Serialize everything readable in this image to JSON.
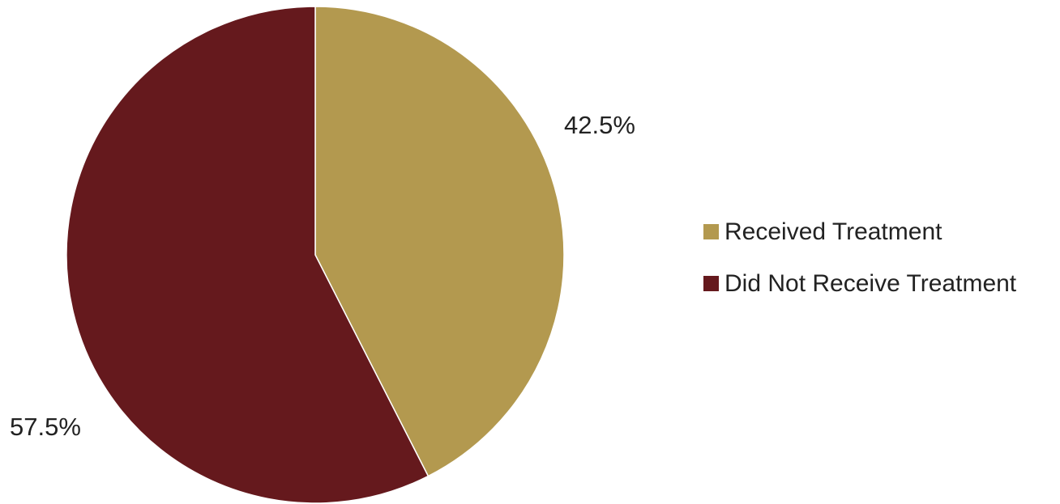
{
  "chart_data": {
    "type": "pie",
    "title": "",
    "legend_position": "right",
    "slices": [
      {
        "label": "Received Treatment",
        "value": 42.5,
        "value_label": "42.5%",
        "color": "#b3994f"
      },
      {
        "label": "Did Not Receive Treatment",
        "value": 57.5,
        "value_label": "57.5%",
        "color": "#65191d"
      }
    ]
  }
}
